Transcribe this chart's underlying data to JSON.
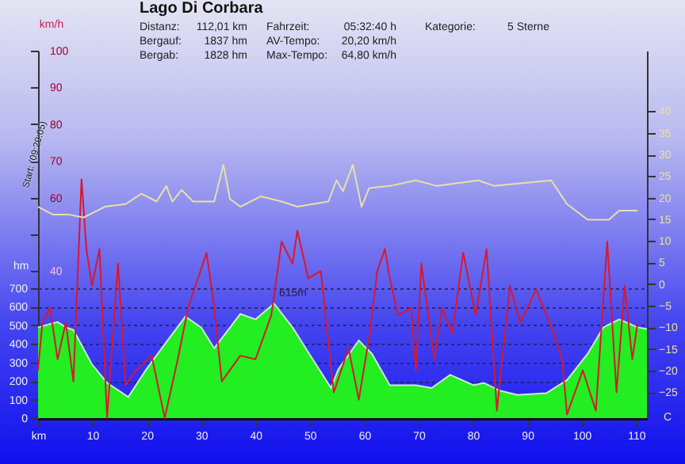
{
  "chart_data": {
    "type": "line",
    "title": "Lago Di Corbara",
    "annotations": [
      "Distanz:",
      "112,01 km",
      "Fahrzeit:",
      "05:32:40 h",
      "Kategorie:",
      "5 Sterne",
      "Bergauf:",
      "1837 hm",
      "AV-Tempo:",
      "20,20 km/h",
      "Bergab:",
      "1828 hm",
      "Max-Tempo:",
      "64,80 km/h",
      "Start: (09:29:05)",
      "615m"
    ],
    "xlim": [
      0,
      112
    ],
    "xticks": [
      {
        "value": 0,
        "label": "km"
      },
      10,
      20,
      30,
      40,
      50,
      60,
      70,
      80,
      90,
      100,
      110
    ],
    "ylabel": "km/h",
    "ylim": [
      0,
      100
    ],
    "yticks": [
      40,
      {
        "value": 50,
        "label": null
      },
      60,
      70,
      80,
      90,
      100
    ],
    "y2label": "C",
    "y2lim": [
      -31,
      54
    ],
    "y2ticks": [
      -25,
      -20,
      -15,
      -10,
      -5,
      0,
      5,
      10,
      15,
      20,
      25,
      30,
      35,
      40
    ],
    "y3label": "hm",
    "y3lim": [
      0,
      1980
    ],
    "y3ticks": [
      0,
      100,
      200,
      300,
      400,
      500,
      600,
      700
    ],
    "grid": true,
    "series": [
      {
        "type": "area",
        "axis": "y3",
        "color": "#22ee22",
        "x": [
          0,
          3.6,
          5.1,
          6.5,
          9.9,
          12.7,
          16.6,
          19.9,
          23.8,
          27.1,
          30,
          32.4,
          37.2,
          40,
          43.4,
          46.8,
          51.1,
          53.9,
          55.2,
          59,
          61.4,
          64.7,
          69.5,
          72.4,
          75.8,
          80.1,
          82,
          84.9,
          88.2,
          93.5,
          97.3,
          101.1,
          104,
          106.9,
          110.3,
          112
        ],
        "values": [
          489,
          518,
          489,
          475,
          290,
          190,
          114,
          262,
          418,
          547,
          489,
          376,
          561,
          532,
          617,
          489,
          290,
          162,
          262,
          418,
          347,
          177,
          177,
          162,
          233,
          177,
          190,
          148,
          125,
          134,
          205,
          347,
          489,
          532,
          489,
          480
        ]
      },
      {
        "type": "line",
        "color": "#d81830",
        "x": [
          0,
          0.8,
          2.2,
          3.6,
          5.1,
          6.5,
          8,
          8.9,
          9.9,
          11.3,
          12.7,
          14.7,
          16.1,
          18,
          20.9,
          23.3,
          25.7,
          27.6,
          31,
          32.4,
          33.8,
          37.2,
          40,
          42.9,
          44.8,
          46.8,
          47.7,
          49.7,
          52,
          54.4,
          57.1,
          59,
          60.9,
          62.4,
          63.8,
          64.7,
          66.2,
          68.6,
          69.5,
          70.5,
          72.9,
          74.3,
          76.2,
          78.2,
          80.5,
          82.5,
          84.4,
          86.8,
          88.7,
          91.6,
          94.4,
          96.4,
          97.3,
          100.2,
          102.6,
          104.7,
          106.4,
          107.9,
          109.3,
          110.3
        ],
        "values": [
          13,
          26,
          30,
          16,
          26,
          10,
          65,
          46,
          36,
          46,
          0,
          42,
          9,
          13,
          17,
          0,
          16,
          30,
          45,
          30,
          10,
          17,
          16,
          28,
          48,
          42,
          51,
          38,
          40,
          7,
          19,
          5,
          22,
          40,
          46,
          38,
          28,
          30,
          13,
          42,
          16,
          30,
          23,
          45,
          28,
          46,
          2,
          36,
          26,
          35,
          25,
          16,
          1,
          13,
          2,
          48,
          7,
          36,
          16,
          26
        ]
      },
      {
        "type": "line",
        "axis": "y2",
        "color": "#e8e0a8",
        "x": [
          0,
          2.7,
          5.6,
          8.4,
          12.3,
          16.1,
          19,
          21.8,
          23.6,
          24.7,
          26.4,
          28.5,
          32.4,
          34.1,
          35.3,
          37.2,
          41,
          44.8,
          47.7,
          53.4,
          54.9,
          56.1,
          57.9,
          59.5,
          60.9,
          64.7,
          69.5,
          73.4,
          81,
          83.9,
          94.4,
          97.3,
          101.1,
          105,
          106.9,
          110.3
        ],
        "values": [
          17.9,
          16.1,
          16.1,
          15.4,
          17.9,
          18.5,
          20.9,
          19.1,
          22.7,
          19.1,
          21.8,
          19.1,
          19.1,
          27.6,
          19.7,
          17.9,
          20.3,
          19.1,
          17.9,
          19.1,
          24,
          21.5,
          27.6,
          17.9,
          22.2,
          22.7,
          24,
          22.7,
          24,
          22.7,
          24,
          18.5,
          14.9,
          14.9,
          17,
          17
        ]
      }
    ]
  }
}
